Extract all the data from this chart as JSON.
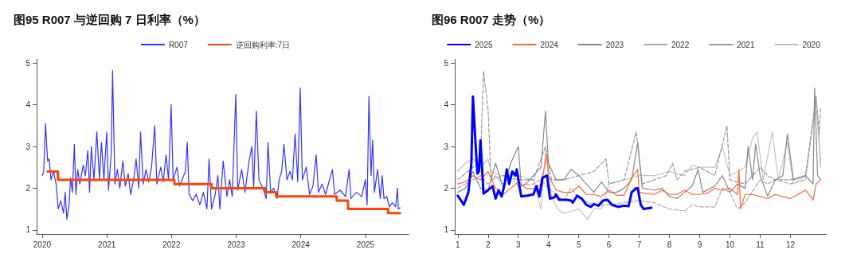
{
  "chart_data": [
    {
      "type": "line",
      "title": "图95 R007 与逆回购 7 日利率（%）",
      "legend": "top",
      "marker": "none",
      "xlim": [
        "2019-12-01",
        "2025-09-01"
      ],
      "xticks": [
        {
          "value": "2020-01-01",
          "label": "2020"
        },
        {
          "value": "2021-01-01",
          "label": "2021"
        },
        {
          "value": "2022-01-01",
          "label": "2022"
        },
        {
          "value": "2023-01-01",
          "label": "2023"
        },
        {
          "value": "2024-01-01",
          "label": "2024"
        },
        {
          "value": "2025-01-01",
          "label": "2025"
        }
      ],
      "ylim": [
        0.9,
        5.1
      ],
      "yticks": [
        1,
        2,
        3,
        4,
        5
      ],
      "series": [
        {
          "name": "R007",
          "color": "#3333ff",
          "line_style": "solid",
          "x": [
            "2020-01-02",
            "2020-01-10",
            "2020-01-20",
            "2020-02-01",
            "2020-02-10",
            "2020-02-20",
            "2020-03-05",
            "2020-03-20",
            "2020-04-01",
            "2020-04-15",
            "2020-05-01",
            "2020-05-10",
            "2020-05-20",
            "2020-06-01",
            "2020-06-10",
            "2020-06-20",
            "2020-07-01",
            "2020-07-10",
            "2020-07-20",
            "2020-08-01",
            "2020-08-20",
            "2020-09-01",
            "2020-09-15",
            "2020-09-25",
            "2020-10-05",
            "2020-10-20",
            "2020-11-05",
            "2020-11-20",
            "2020-12-01",
            "2020-12-15",
            "2020-12-31",
            "2021-01-10",
            "2021-01-25",
            "2021-02-02",
            "2021-02-15",
            "2021-03-01",
            "2021-03-15",
            "2021-04-01",
            "2021-04-15",
            "2021-05-01",
            "2021-05-15",
            "2021-06-01",
            "2021-06-15",
            "2021-06-30",
            "2021-07-10",
            "2021-07-25",
            "2021-08-10",
            "2021-08-25",
            "2021-09-10",
            "2021-09-28",
            "2021-10-10",
            "2021-11-01",
            "2021-11-15",
            "2021-12-01",
            "2021-12-15",
            "2021-12-30",
            "2022-01-10",
            "2022-02-01",
            "2022-02-15",
            "2022-03-20",
            "2022-03-31",
            "2022-04-10",
            "2022-05-01",
            "2022-05-20",
            "2022-06-10",
            "2022-06-30",
            "2022-07-20",
            "2022-08-01",
            "2022-08-15",
            "2022-09-05",
            "2022-09-20",
            "2022-10-01",
            "2022-10-20",
            "2022-11-10",
            "2022-11-25",
            "2022-12-10",
            "2022-12-30",
            "2023-01-10",
            "2023-02-01",
            "2023-02-20",
            "2023-03-15",
            "2023-03-31",
            "2023-04-10",
            "2023-04-25",
            "2023-05-10",
            "2023-06-01",
            "2023-06-20",
            "2023-06-30",
            "2023-07-15",
            "2023-08-01",
            "2023-08-20",
            "2023-09-01",
            "2023-09-15",
            "2023-09-28",
            "2023-10-15",
            "2023-11-01",
            "2023-11-15",
            "2023-11-30",
            "2023-12-15",
            "2023-12-29",
            "2024-01-10",
            "2024-02-01",
            "2024-02-20",
            "2024-03-10",
            "2024-03-28",
            "2024-04-10",
            "2024-05-01",
            "2024-05-20",
            "2024-06-28",
            "2024-07-10",
            "2024-08-10",
            "2024-09-10",
            "2024-09-30",
            "2024-10-10",
            "2024-11-10",
            "2024-12-10",
            "2024-12-31",
            "2025-01-10",
            "2025-01-20",
            "2025-02-01",
            "2025-02-10",
            "2025-02-20",
            "2025-03-10",
            "2025-03-25",
            "2025-04-05",
            "2025-04-15",
            "2025-05-01",
            "2025-05-15",
            "2025-06-01",
            "2025-06-20",
            "2025-06-30",
            "2025-07-05",
            "2025-07-15"
          ],
          "values": [
            2.3,
            2.4,
            3.55,
            2.65,
            2.7,
            2.2,
            2.4,
            2.1,
            1.5,
            1.7,
            1.4,
            1.9,
            1.25,
            1.6,
            2.25,
            1.9,
            3.05,
            1.85,
            2.45,
            2.1,
            2.55,
            2.3,
            2.9,
            1.9,
            3.0,
            2.2,
            3.35,
            2.2,
            3.1,
            2.2,
            3.35,
            1.95,
            2.8,
            4.82,
            2.1,
            2.45,
            2.0,
            2.65,
            2.05,
            2.35,
            1.85,
            2.2,
            2.7,
            2.0,
            3.35,
            2.1,
            2.45,
            2.15,
            2.5,
            3.5,
            2.1,
            2.5,
            2.15,
            2.8,
            2.2,
            4.0,
            2.2,
            2.5,
            2.05,
            2.4,
            3.1,
            1.85,
            1.7,
            1.85,
            1.6,
            1.9,
            1.5,
            2.7,
            1.5,
            1.85,
            2.3,
            1.5,
            2.65,
            1.8,
            2.2,
            1.8,
            4.25,
            1.95,
            2.45,
            1.9,
            2.65,
            3.0,
            2.0,
            3.85,
            2.2,
            2.0,
            1.75,
            3.1,
            1.9,
            2.0,
            1.75,
            2.2,
            2.4,
            3.05,
            2.2,
            2.4,
            2.2,
            3.3,
            2.15,
            4.4,
            2.2,
            2.5,
            1.85,
            2.05,
            2.8,
            1.9,
            2.1,
            1.85,
            2.45,
            1.85,
            1.95,
            1.8,
            2.45,
            1.75,
            1.9,
            1.8,
            2.2,
            1.6,
            4.2,
            2.3,
            3.15,
            1.9,
            2.45,
            1.75,
            2.3,
            1.75,
            1.8,
            1.55,
            1.65,
            1.55,
            2.0,
            1.5,
            1.53
          ]
        },
        {
          "name": "逆回购利率:7日",
          "type": "step",
          "color": "#ff4500",
          "line_style": "solid",
          "x": [
            "2020-02-01",
            "2020-03-30",
            "2022-01-17",
            "2022-08-15",
            "2023-06-13",
            "2023-08-15",
            "2024-07-22",
            "2024-09-24",
            "2025-05-08",
            "2025-07-15"
          ],
          "values": [
            2.4,
            2.2,
            2.1,
            2.0,
            1.9,
            1.8,
            1.7,
            1.5,
            1.4,
            1.4
          ]
        }
      ]
    },
    {
      "type": "line",
      "title": "图96 R007 走势（%）",
      "legend": "top",
      "marker": "none",
      "xlim": [
        0.9,
        13.2
      ],
      "xticks": [
        1,
        2,
        3,
        4,
        5,
        6,
        7,
        8,
        9,
        10,
        11,
        12
      ],
      "ylim": [
        0.9,
        5.1
      ],
      "yticks": [
        1,
        2,
        3,
        4,
        5
      ],
      "series": [
        {
          "name": "2025",
          "color": "#0000ff",
          "line_style": "solid",
          "x": [
            1.0,
            1.2,
            1.35,
            1.45,
            1.5,
            1.6,
            1.65,
            1.7,
            1.75,
            1.85,
            2.0,
            2.15,
            2.25,
            2.35,
            2.45,
            2.55,
            2.62,
            2.7,
            2.8,
            2.9,
            2.95,
            3.05,
            3.1,
            3.3,
            3.5,
            3.6,
            3.7,
            3.8,
            3.95,
            4.05,
            4.2,
            4.25,
            4.35,
            4.6,
            4.75,
            4.8,
            4.95,
            5.1,
            5.25,
            5.4,
            5.5,
            5.65,
            5.8,
            5.95,
            6.1,
            6.3,
            6.5,
            6.65,
            6.75,
            6.9,
            6.95,
            7.05,
            7.15,
            7.4
          ],
          "values": [
            1.82,
            1.6,
            1.9,
            2.6,
            4.2,
            2.9,
            2.35,
            2.4,
            3.15,
            1.87,
            1.95,
            2.05,
            1.75,
            1.95,
            1.8,
            2.1,
            2.45,
            2.1,
            2.4,
            2.3,
            2.45,
            2.0,
            1.8,
            1.82,
            1.85,
            2.05,
            1.8,
            2.25,
            2.3,
            1.75,
            1.78,
            1.85,
            1.72,
            1.72,
            1.7,
            1.65,
            1.82,
            1.75,
            1.6,
            1.55,
            1.62,
            1.58,
            1.7,
            1.72,
            1.6,
            1.55,
            1.58,
            1.57,
            1.9,
            2.0,
            2.0,
            1.6,
            1.5,
            1.53
          ]
        },
        {
          "name": "2024",
          "color": "#ff6633",
          "line_style": "solid",
          "x": [
            1,
            1.25,
            1.5,
            1.75,
            2,
            2.25,
            2.5,
            2.75,
            3,
            3.25,
            3.5,
            3.75,
            3.95,
            4,
            4.25,
            4.5,
            4.75,
            5,
            5.25,
            5.5,
            5.75,
            6,
            6.25,
            6.5,
            6.75,
            6.95,
            7,
            7.25,
            7.5,
            7.75,
            8,
            8.25,
            8.5,
            8.75,
            9,
            9.25,
            9.5,
            9.75,
            10,
            10.25,
            10.3,
            10.35,
            10.5,
            10.75,
            11,
            11.25,
            11.5,
            11.75,
            12,
            12.25,
            12.5,
            12.75,
            12.85,
            13
          ],
          "values": [
            2.1,
            2.15,
            2.3,
            2.2,
            2.4,
            2.0,
            1.85,
            2.0,
            2.15,
            2.0,
            1.98,
            2.1,
            2.8,
            2.3,
            1.95,
            1.9,
            1.9,
            2.05,
            1.85,
            1.85,
            1.8,
            1.95,
            1.83,
            1.83,
            2.25,
            2.45,
            1.9,
            1.87,
            1.85,
            1.95,
            1.85,
            1.85,
            1.95,
            1.85,
            1.85,
            1.88,
            2.0,
            1.95,
            2.0,
            1.85,
            2.45,
            1.5,
            1.85,
            1.85,
            1.8,
            1.75,
            1.85,
            1.8,
            1.75,
            1.85,
            1.95,
            1.72,
            2.1,
            2.2
          ]
        },
        {
          "name": "2023",
          "color": "#888888",
          "line_style": "solid",
          "x": [
            1,
            1.25,
            1.5,
            1.75,
            2,
            2.25,
            2.5,
            2.75,
            3,
            3.1,
            3.25,
            3.5,
            3.75,
            3.9,
            4,
            4.25,
            4.5,
            4.75,
            5,
            5.25,
            5.5,
            5.75,
            6,
            6.25,
            6.5,
            6.75,
            6.95,
            7.1,
            7.5,
            7.75,
            8,
            8.25,
            8.5,
            8.75,
            8.95,
            9.1,
            9.5,
            9.75,
            10,
            10.25,
            10.5,
            10.6,
            10.75,
            10.85,
            11,
            11.25,
            11.5,
            11.75,
            11.9,
            12.1,
            12.5,
            12.75,
            12.8,
            12.9,
            13
          ],
          "values": [
            1.9,
            2.0,
            2.4,
            2.0,
            1.95,
            2.6,
            2.0,
            2.6,
            3.0,
            2.05,
            2.1,
            2.3,
            2.5,
            3.85,
            2.6,
            2.2,
            2.2,
            2.45,
            2.3,
            2.1,
            1.9,
            2.15,
            1.9,
            1.9,
            2.0,
            2.2,
            3.1,
            2.0,
            1.95,
            2.0,
            1.8,
            1.75,
            1.9,
            2.05,
            2.45,
            1.9,
            2.05,
            2.3,
            1.9,
            2.1,
            2.0,
            3.0,
            2.2,
            3.05,
            2.3,
            1.8,
            2.2,
            2.3,
            3.3,
            2.2,
            2.3,
            2.1,
            4.4,
            2.3,
            2.2
          ]
        },
        {
          "name": "2022",
          "color": "#aaaaaa",
          "line_style": "dashed",
          "x": [
            1,
            1.5,
            1.75,
            2,
            2.25,
            2.5,
            2.75,
            3,
            3.5,
            3.75,
            4,
            4.5,
            4.75,
            5,
            5.5,
            6,
            6.5,
            7,
            7.5,
            8,
            8.5,
            8.75,
            9,
            9.5,
            9.75,
            10,
            10.25,
            10.5,
            11,
            11.25,
            11.5,
            12,
            12.5,
            12.85,
            13
          ],
          "values": [
            2.0,
            2.2,
            2.3,
            2.1,
            2.3,
            2.1,
            2.3,
            2.05,
            2.1,
            2.2,
            2.0,
            1.7,
            2.0,
            1.75,
            1.6,
            1.6,
            1.65,
            1.7,
            1.65,
            1.5,
            1.45,
            1.6,
            1.55,
            1.55,
            2.0,
            1.9,
            1.5,
            1.65,
            2.2,
            2.1,
            2.2,
            2.1,
            2.2,
            4.2,
            2.6
          ]
        },
        {
          "name": "2021",
          "color": "#999999",
          "line_style": "dashed",
          "x": [
            1,
            1.5,
            1.75,
            1.85,
            2.0,
            2.1,
            2.5,
            3,
            3.5,
            3.9,
            4.1,
            4.5,
            5,
            5.5,
            5.9,
            6,
            6.5,
            6.9,
            7.1,
            7.5,
            7.9,
            8.1,
            8.25,
            8.5,
            9,
            9.5,
            9.9,
            10,
            10.5,
            11,
            11.25,
            11.5,
            12,
            12.5,
            12.85,
            12.95,
            13
          ],
          "values": [
            2.2,
            2.5,
            2.6,
            4.8,
            3.9,
            2.2,
            2.3,
            2.2,
            2.2,
            3.0,
            2.2,
            2.2,
            2.3,
            2.4,
            2.7,
            2.1,
            2.2,
            3.35,
            2.1,
            2.2,
            2.3,
            2.6,
            2.2,
            2.4,
            2.5,
            2.3,
            3.5,
            2.2,
            2.1,
            2.5,
            2.3,
            2.2,
            2.2,
            2.3,
            4.2,
            3.3,
            3.9
          ]
        },
        {
          "name": "2020",
          "color": "#bbbbbb",
          "line_style": "dotted",
          "x": [
            1,
            1.25,
            1.5,
            1.75,
            2,
            2.1,
            2.5,
            3,
            3.5,
            3.75,
            3.9,
            4.1,
            4.3,
            4.5,
            5,
            5.3,
            5.5,
            5.75,
            6,
            6.5,
            7,
            7.5,
            8,
            8.5,
            8.75,
            9,
            9.5,
            9.75,
            10,
            10.5,
            10.75,
            10.9,
            11.1,
            11.4,
            11.6,
            11.9,
            12.1,
            12.5,
            12.85,
            13
          ],
          "values": [
            2.4,
            2.6,
            2.7,
            2.5,
            2.7,
            2.4,
            2.3,
            2.3,
            2.2,
            1.5,
            2.9,
            1.8,
            1.5,
            1.4,
            1.5,
            1.25,
            1.5,
            1.5,
            2.1,
            2.2,
            2.3,
            2.3,
            2.4,
            2.3,
            2.55,
            2.5,
            2.5,
            3.0,
            2.3,
            2.5,
            3.2,
            3.35,
            2.2,
            3.35,
            2.2,
            3.1,
            2.1,
            2.3,
            4.1,
            2.5
          ]
        }
      ]
    }
  ]
}
